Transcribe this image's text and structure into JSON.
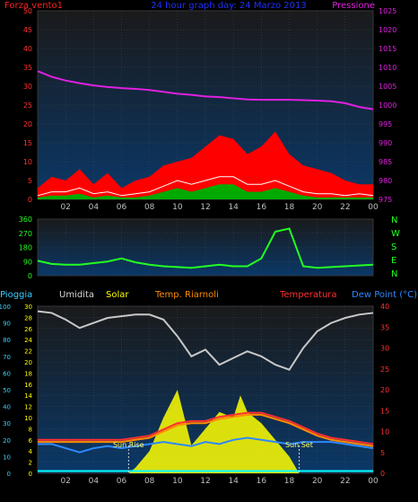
{
  "chart_data": [
    {
      "type": "line",
      "labels": {
        "left": "Forza vento1",
        "center": "24 hour graph day: 24 Marzo 2013",
        "right": "Pressione"
      },
      "yleft_ticks": [
        0,
        5,
        10,
        15,
        20,
        25,
        30,
        35,
        40,
        45,
        50
      ],
      "yright_ticks": [
        975,
        980,
        985,
        990,
        995,
        1000,
        1005,
        1010,
        1015,
        1020,
        1025
      ],
      "ylim_left": [
        0,
        50
      ],
      "ylim_right": [
        975,
        1025
      ],
      "x_ticks": [
        "02",
        "04",
        "06",
        "08",
        "10",
        "12",
        "14",
        "16",
        "18",
        "20",
        "22",
        "00"
      ],
      "series": [
        {
          "name": "Pressione",
          "axis": "right",
          "color": "#e020e0",
          "x": [
            0,
            1,
            2,
            3,
            4,
            5,
            6,
            7,
            8,
            9,
            10,
            11,
            12,
            13,
            14,
            15,
            16,
            17,
            18,
            19,
            20,
            21,
            22,
            23,
            24
          ],
          "values": [
            1009,
            1007.5,
            1006.5,
            1005.8,
            1005.2,
            1004.8,
            1004.5,
            1004.3,
            1004,
            1003.5,
            1003,
            1002.7,
            1002.3,
            1002.1,
            1001.8,
            1001.5,
            1001.4,
            1001.4,
            1001.4,
            1001.3,
            1001.2,
            1001,
            1000.5,
            999.5,
            998.9
          ]
        },
        {
          "name": "",
          "axis": "left",
          "color": "#ff0000",
          "x": [
            0,
            1,
            2,
            3,
            4,
            5,
            6,
            7,
            8,
            9,
            10,
            11,
            12,
            13,
            14,
            15,
            16,
            17,
            18,
            19,
            20,
            21,
            22,
            23,
            24
          ],
          "values": [
            3,
            6,
            5,
            8,
            4,
            7,
            3,
            5,
            6,
            9,
            10,
            11,
            14,
            17,
            16,
            12,
            14,
            18,
            12,
            9,
            8,
            7,
            5,
            4,
            4
          ]
        },
        {
          "name": "",
          "axis": "left",
          "color": "#00aa00",
          "x": [
            0,
            1,
            2,
            3,
            4,
            5,
            6,
            7,
            8,
            9,
            10,
            11,
            12,
            13,
            14,
            15,
            16,
            17,
            18,
            19,
            20,
            21,
            22,
            23,
            24
          ],
          "values": [
            0.5,
            1,
            1,
            1.5,
            0.5,
            1,
            0.5,
            0.5,
            1,
            2,
            3,
            2,
            3,
            4,
            4,
            2,
            2,
            3,
            2,
            1,
            0.5,
            0.5,
            0.5,
            0.5,
            0.5
          ]
        },
        {
          "name": "",
          "axis": "left",
          "color": "#ffffff",
          "x": [
            0,
            1,
            2,
            3,
            4,
            5,
            6,
            7,
            8,
            9,
            10,
            11,
            12,
            13,
            14,
            15,
            16,
            17,
            18,
            19,
            20,
            21,
            22,
            23,
            24
          ],
          "values": [
            1,
            2,
            2,
            3,
            1.5,
            2,
            1,
            1.5,
            2,
            3.5,
            5,
            4,
            5,
            6,
            6,
            4,
            4,
            5,
            3.5,
            2,
            1.5,
            1.5,
            1,
            1.5,
            1
          ]
        }
      ]
    },
    {
      "type": "line",
      "yleft_ticks": [
        0,
        90,
        180,
        270,
        360
      ],
      "ylim": [
        0,
        360
      ],
      "compass": [
        "N",
        "W",
        "S",
        "E",
        "N"
      ],
      "series": [
        {
          "name": "",
          "color": "#22ff22",
          "x": [
            0,
            1,
            2,
            3,
            4,
            5,
            6,
            7,
            8,
            9,
            10,
            11,
            12,
            13,
            14,
            15,
            16,
            17,
            18,
            19,
            20,
            21,
            22,
            23,
            24
          ],
          "values": [
            95,
            75,
            70,
            70,
            80,
            90,
            110,
            85,
            70,
            60,
            55,
            50,
            60,
            70,
            60,
            60,
            110,
            280,
            300,
            60,
            50,
            55,
            60,
            65,
            70
          ]
        }
      ]
    },
    {
      "type": "line",
      "labels": {
        "pioggia": "Pioggia",
        "umidita": "Umidita",
        "solar": "Solar",
        "temp_riarnoli": "Temp. Riarnoli",
        "temperatura": "Temperatura",
        "dewpoint": "Dew Point (°C)"
      },
      "yleft_ticks": [
        0,
        10,
        20,
        30,
        40,
        50,
        60,
        70,
        80,
        90,
        100
      ],
      "ysecond_ticks": [
        0,
        2,
        4,
        6,
        8,
        10,
        12,
        14,
        16,
        18,
        20,
        22,
        24,
        26,
        28,
        30
      ],
      "yright_ticks": [
        0,
        5,
        10,
        15,
        20,
        25,
        30,
        35,
        40
      ],
      "ylim_left": [
        0,
        100
      ],
      "ylim_second": [
        0,
        30
      ],
      "ylim_right": [
        0,
        40
      ],
      "x_ticks": [
        "02",
        "04",
        "06",
        "08",
        "10",
        "12",
        "14",
        "16",
        "18",
        "20",
        "22",
        "00"
      ],
      "annotations": [
        {
          "text": "Sun Rise",
          "x": 6.5
        },
        {
          "text": "Sun Set",
          "x": 18.7
        }
      ],
      "series": [
        {
          "name": "Umidita",
          "axis": "left",
          "color": "#c8c8c8",
          "x": [
            0,
            1,
            2,
            3,
            4,
            5,
            6,
            7,
            8,
            9,
            10,
            11,
            12,
            13,
            14,
            15,
            16,
            17,
            18,
            19,
            20,
            21,
            22,
            23,
            24
          ],
          "values": [
            97,
            96,
            92,
            87,
            90,
            93,
            94,
            95,
            95,
            92,
            82,
            70,
            74,
            65,
            69,
            73,
            70,
            65,
            62,
            75,
            85,
            90,
            93,
            95,
            96
          ]
        },
        {
          "name": "Temperatura",
          "axis": "right",
          "color": "#ff3030",
          "x": [
            0,
            1,
            2,
            3,
            4,
            5,
            6,
            7,
            8,
            9,
            10,
            11,
            12,
            13,
            14,
            15,
            16,
            17,
            18,
            19,
            20,
            21,
            22,
            23,
            24
          ],
          "values": [
            8,
            8,
            8,
            8,
            8,
            8,
            8,
            8.5,
            9,
            10.5,
            12,
            12.5,
            12.5,
            13.5,
            14,
            14.5,
            14.5,
            13.5,
            12.5,
            11,
            9.5,
            8.5,
            8,
            7.5,
            7
          ]
        },
        {
          "name": "Temp. Riarnoli",
          "axis": "right",
          "color": "#ff8c00",
          "x": [
            0,
            1,
            2,
            3,
            4,
            5,
            6,
            7,
            8,
            9,
            10,
            11,
            12,
            13,
            14,
            15,
            16,
            17,
            18,
            19,
            20,
            21,
            22,
            23,
            24
          ],
          "values": [
            7.5,
            7.5,
            7.5,
            7.5,
            7.5,
            7.5,
            7.5,
            8,
            8.5,
            10,
            11.5,
            12,
            12,
            13,
            13.5,
            14,
            14,
            13,
            12,
            10.5,
            9,
            8,
            7.5,
            7,
            6.5
          ]
        },
        {
          "name": "Dew Point (°C)",
          "axis": "right",
          "color": "#2d88ff",
          "x": [
            0,
            1,
            2,
            3,
            4,
            5,
            6,
            7,
            8,
            9,
            10,
            11,
            12,
            13,
            14,
            15,
            16,
            17,
            18,
            19,
            20,
            21,
            22,
            23,
            24
          ],
          "values": [
            7,
            7,
            6,
            5,
            6,
            6.5,
            6,
            6.5,
            7,
            7.5,
            7,
            6.5,
            7.5,
            7,
            8,
            8.5,
            8,
            7.5,
            7,
            7.5,
            7.5,
            7.5,
            7,
            6.5,
            6
          ]
        },
        {
          "name": "Solar",
          "axis": "second",
          "color": "#ffff00",
          "x": [
            6.5,
            7,
            8,
            9,
            10,
            11,
            12,
            13,
            14,
            14.5,
            15,
            16,
            17,
            18,
            18.7
          ],
          "values": [
            0,
            1,
            4,
            10,
            15,
            5,
            8,
            11,
            10,
            14,
            11,
            9,
            6,
            3,
            0
          ]
        },
        {
          "name": "Pioggia",
          "axis": "second",
          "color": "#00ffff",
          "x": [
            0,
            24
          ],
          "values": [
            0.4,
            0.4
          ]
        }
      ]
    }
  ]
}
